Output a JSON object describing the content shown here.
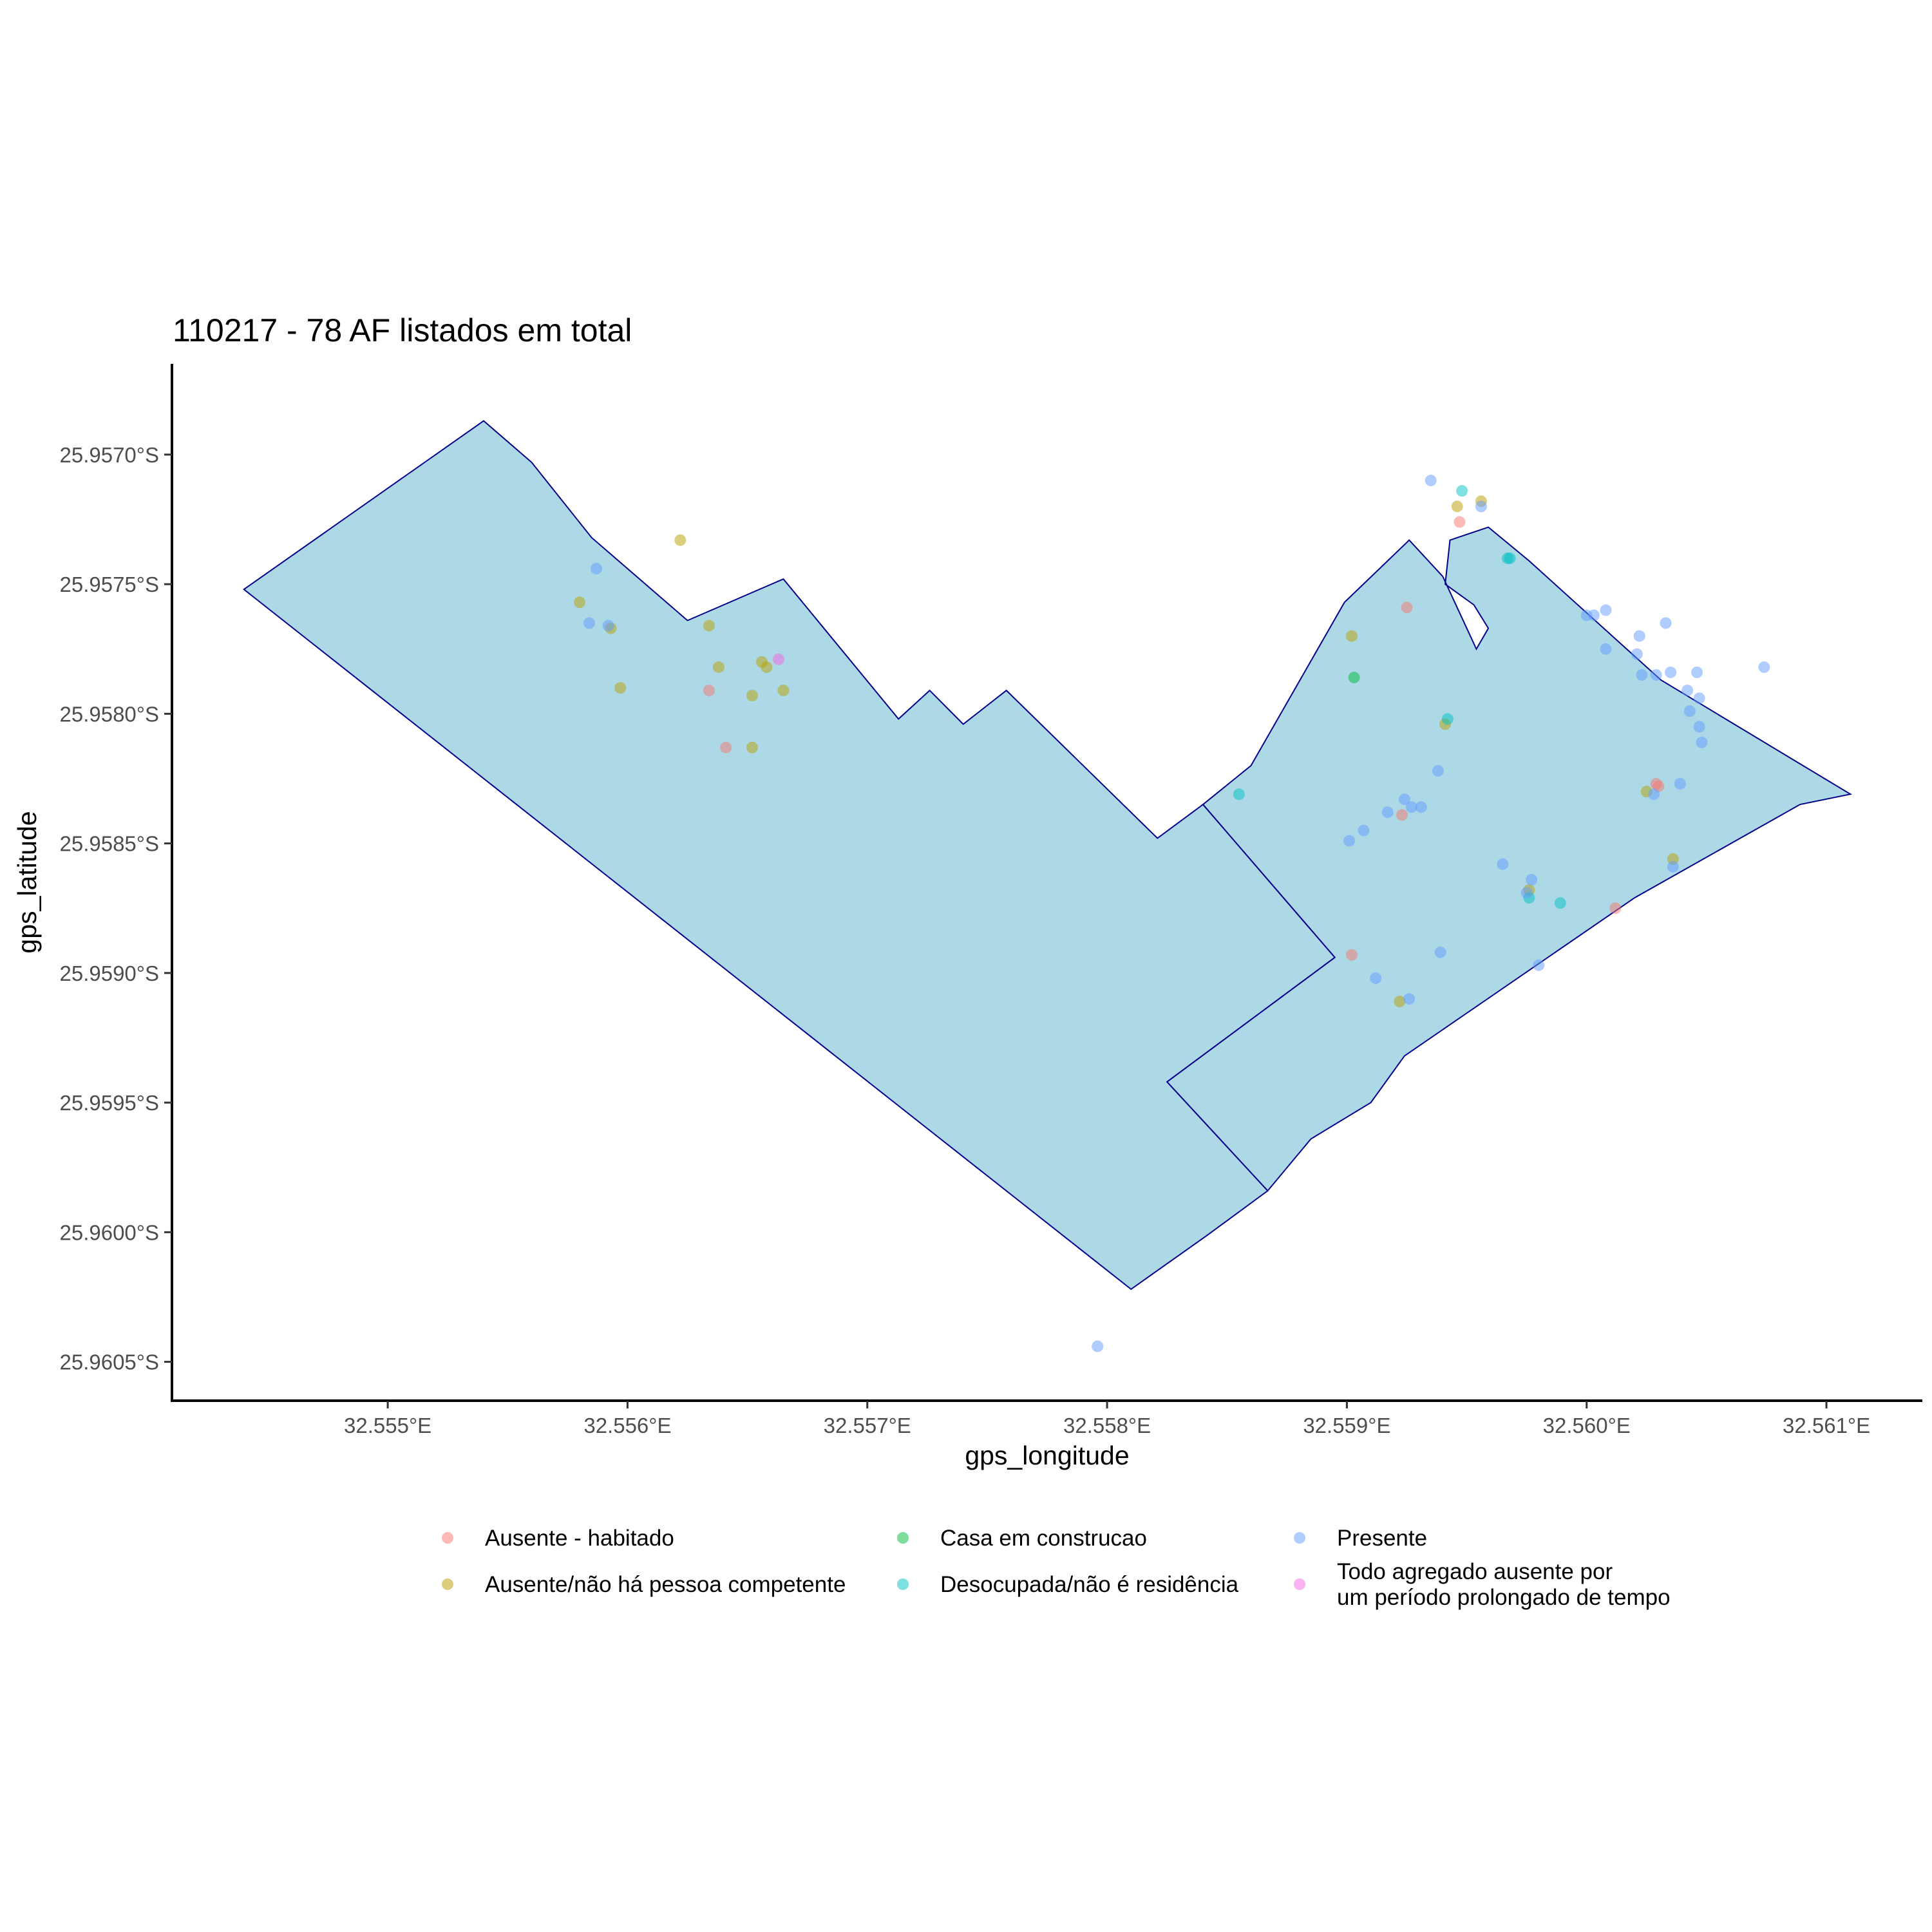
{
  "chart_data": {
    "type": "scatter",
    "title": "110217 - 78 AF listados em total",
    "xlabel": "gps_longitude",
    "ylabel": "gps_latitude",
    "xlim": [
      32.5541,
      32.5614
    ],
    "ylim": [
      -25.96065,
      -25.95665
    ],
    "x_ticks": [
      {
        "value": 32.555,
        "label": "32.555°E"
      },
      {
        "value": 32.556,
        "label": "32.556°E"
      },
      {
        "value": 32.557,
        "label": "32.557°E"
      },
      {
        "value": 32.558,
        "label": "32.558°E"
      },
      {
        "value": 32.559,
        "label": "32.559°E"
      },
      {
        "value": 32.56,
        "label": "32.560°E"
      },
      {
        "value": 32.561,
        "label": "32.561°E"
      }
    ],
    "y_ticks": [
      {
        "value": -25.957,
        "label": "25.9570°S"
      },
      {
        "value": -25.9575,
        "label": "25.9575°S"
      },
      {
        "value": -25.958,
        "label": "25.9580°S"
      },
      {
        "value": -25.9585,
        "label": "25.9585°S"
      },
      {
        "value": -25.959,
        "label": "25.9590°S"
      },
      {
        "value": -25.9595,
        "label": "25.9595°S"
      },
      {
        "value": -25.96,
        "label": "25.9600°S"
      },
      {
        "value": -25.9605,
        "label": "25.9605°S"
      }
    ],
    "grid": false,
    "legend_position": "bottom",
    "polygon_fill": "#add8e6",
    "polygon_stroke": "#00008b",
    "polygons": [
      [
        [
          32.5544,
          -25.95752
        ],
        [
          32.5554,
          -25.95687
        ],
        [
          32.5556,
          -25.95703
        ],
        [
          32.55585,
          -25.95732
        ],
        [
          32.55625,
          -25.95764
        ],
        [
          32.55665,
          -25.95748
        ],
        [
          32.55713,
          -25.95802
        ],
        [
          32.55726,
          -25.95791
        ],
        [
          32.5574,
          -25.95804
        ],
        [
          32.55758,
          -25.95791
        ],
        [
          32.55821,
          -25.95848
        ],
        [
          32.5584,
          -25.95835
        ],
        [
          32.55895,
          -25.95894
        ],
        [
          32.55825,
          -25.95942
        ],
        [
          32.55867,
          -25.95984
        ],
        [
          32.55842,
          -25.96001
        ],
        [
          32.5581,
          -25.96022
        ],
        [
          32.5544,
          -25.95752
        ]
      ],
      [
        [
          32.5584,
          -25.95835
        ],
        [
          32.5586,
          -25.9582
        ],
        [
          32.55899,
          -25.95757
        ],
        [
          32.55926,
          -25.95733
        ],
        [
          32.5594,
          -25.95747
        ],
        [
          32.55954,
          -25.95775
        ],
        [
          32.55959,
          -25.95767
        ],
        [
          32.55953,
          -25.95758
        ],
        [
          32.55941,
          -25.9575
        ],
        [
          32.55943,
          -25.95733
        ],
        [
          32.55959,
          -25.95728
        ],
        [
          32.55976,
          -25.95741
        ],
        [
          32.56031,
          -25.95787
        ],
        [
          32.5611,
          -25.95831
        ],
        [
          32.56089,
          -25.95835
        ],
        [
          32.5602,
          -25.95871
        ],
        [
          32.55924,
          -25.95932
        ],
        [
          32.5591,
          -25.9595
        ],
        [
          32.55885,
          -25.95964
        ],
        [
          32.55867,
          -25.95984
        ],
        [
          32.55825,
          -25.95942
        ],
        [
          32.55895,
          -25.95894
        ],
        [
          32.5584,
          -25.95835
        ]
      ]
    ],
    "series": [
      {
        "name": "Ausente - habitado",
        "color": "#f8766d",
        "points": [
          [
            32.55634,
            -25.95791
          ],
          [
            32.55641,
            -25.95813
          ],
          [
            32.55925,
            -25.95759
          ],
          [
            32.55923,
            -25.95839
          ],
          [
            32.55902,
            -25.95893
          ],
          [
            32.56029,
            -25.95827
          ],
          [
            32.5603,
            -25.95828
          ],
          [
            32.56012,
            -25.95875
          ],
          [
            32.55947,
            -25.95726
          ]
        ]
      },
      {
        "name": "Ausente/não há pessoa competente",
        "color": "#b79f00",
        "points": [
          [
            32.5558,
            -25.95757
          ],
          [
            32.55593,
            -25.95767
          ],
          [
            32.55597,
            -25.9579
          ],
          [
            32.55622,
            -25.95733
          ],
          [
            32.55634,
            -25.95766
          ],
          [
            32.55638,
            -25.95782
          ],
          [
            32.55652,
            -25.95793
          ],
          [
            32.55656,
            -25.9578
          ],
          [
            32.55658,
            -25.95782
          ],
          [
            32.55665,
            -25.95791
          ],
          [
            32.55652,
            -25.95813
          ],
          [
            32.55902,
            -25.9577
          ],
          [
            32.55941,
            -25.95804
          ],
          [
            32.55946,
            -25.9572
          ],
          [
            32.55956,
            -25.95718
          ],
          [
            32.56025,
            -25.9583
          ],
          [
            32.56036,
            -25.95856
          ],
          [
            32.55976,
            -25.95868
          ],
          [
            32.55922,
            -25.95911
          ]
        ]
      },
      {
        "name": "Casa em construcao",
        "color": "#00ba38",
        "points": [
          [
            32.55903,
            -25.95786
          ]
        ]
      },
      {
        "name": "Desocupada/não é residência",
        "color": "#00bfc4",
        "points": [
          [
            32.55855,
            -25.95831
          ],
          [
            32.55942,
            -25.95802
          ],
          [
            32.55948,
            -25.95714
          ],
          [
            32.55967,
            -25.9574
          ],
          [
            32.55968,
            -25.9574
          ],
          [
            32.55976,
            -25.95871
          ],
          [
            32.55989,
            -25.95873
          ]
        ]
      },
      {
        "name": "Presente",
        "color": "#619cff",
        "points": [
          [
            32.55587,
            -25.95744
          ],
          [
            32.55584,
            -25.95765
          ],
          [
            32.55592,
            -25.95766
          ],
          [
            32.56,
            -25.95762
          ],
          [
            32.56003,
            -25.95762
          ],
          [
            32.56008,
            -25.9576
          ],
          [
            32.56008,
            -25.95775
          ],
          [
            32.56021,
            -25.95777
          ],
          [
            32.56022,
            -25.9577
          ],
          [
            32.56023,
            -25.95785
          ],
          [
            32.56029,
            -25.95785
          ],
          [
            32.56033,
            -25.95765
          ],
          [
            32.56035,
            -25.95784
          ],
          [
            32.56042,
            -25.95791
          ],
          [
            32.56043,
            -25.95799
          ],
          [
            32.56046,
            -25.95784
          ],
          [
            32.56047,
            -25.95805
          ],
          [
            32.56047,
            -25.95794
          ],
          [
            32.56048,
            -25.95811
          ],
          [
            32.56074,
            -25.95782
          ],
          [
            32.55796,
            -25.96044
          ],
          [
            32.55901,
            -25.95849
          ],
          [
            32.55907,
            -25.95845
          ],
          [
            32.55917,
            -25.95838
          ],
          [
            32.55924,
            -25.95833
          ],
          [
            32.55927,
            -25.95836
          ],
          [
            32.55931,
            -25.95836
          ],
          [
            32.55938,
            -25.95822
          ],
          [
            32.55939,
            -25.95892
          ],
          [
            32.55926,
            -25.9591
          ],
          [
            32.55912,
            -25.95902
          ],
          [
            32.55935,
            -25.9571
          ],
          [
            32.55956,
            -25.9572
          ],
          [
            32.55965,
            -25.95858
          ],
          [
            32.55977,
            -25.95864
          ],
          [
            32.55975,
            -25.95869
          ],
          [
            32.5598,
            -25.95897
          ],
          [
            32.56028,
            -25.95831
          ],
          [
            32.56036,
            -25.95859
          ],
          [
            32.56039,
            -25.95827
          ]
        ]
      },
      {
        "name": "Todo agregado ausente por um período prolongado de tempo",
        "label_lines": [
          "Todo agregado ausente por",
          "um período prolongado de tempo"
        ],
        "color": "#f564e3",
        "points": [
          [
            32.55663,
            -25.95779
          ]
        ]
      }
    ]
  }
}
